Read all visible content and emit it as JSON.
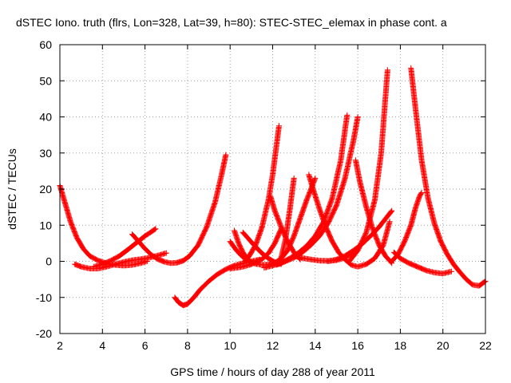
{
  "chart_data": {
    "type": "scatter",
    "title": "dSTEC Iono. truth (flrs, Lon=328, Lat=39, h=80): STEC-STEC_elemax in phase cont. a",
    "xlabel": "GPS time / hours of day 288 of year 2011",
    "ylabel": "dSTEC  / TECUs",
    "xlim": [
      2,
      22
    ],
    "ylim": [
      -20,
      60
    ],
    "xticks": [
      2,
      4,
      6,
      8,
      10,
      12,
      14,
      16,
      18,
      20,
      22
    ],
    "yticks": [
      -20,
      -10,
      0,
      10,
      20,
      30,
      40,
      50,
      60
    ],
    "grid": true,
    "marker": "plus",
    "color": "#ff0000",
    "series": [
      {
        "x": [
          2.0,
          2.2,
          2.5,
          2.8,
          3.1,
          3.4,
          3.8,
          4.2,
          4.6,
          5.0,
          5.4,
          5.8,
          6.1
        ],
        "y": [
          21,
          17,
          11,
          6.5,
          3.5,
          1.5,
          0.2,
          -0.6,
          -1.0,
          -1.2,
          -1.0,
          -0.5,
          0
        ]
      },
      {
        "x": [
          2.7,
          3.0,
          3.4,
          3.8,
          4.2,
          4.6,
          5.0,
          5.4,
          5.8,
          6.2,
          6.6,
          7.0
        ],
        "y": [
          -0.8,
          -1.5,
          -2.0,
          -2.0,
          -1.5,
          -0.8,
          -0.2,
          0.3,
          0.6,
          1.0,
          1.6,
          2.3
        ]
      },
      {
        "x": [
          3.6,
          4.0,
          4.4,
          4.8,
          5.1,
          5.4,
          5.7,
          6.0,
          6.3,
          6.5
        ],
        "y": [
          -1.5,
          -0.8,
          0.2,
          1.5,
          2.8,
          4.2,
          5.6,
          7.0,
          8.2,
          9.0
        ]
      },
      {
        "x": [
          5.4,
          5.7,
          6.0,
          6.3,
          6.6,
          6.9,
          7.2,
          7.5,
          7.8,
          8.1,
          8.5,
          8.9,
          9.3,
          9.6,
          9.8
        ],
        "y": [
          7.5,
          5.5,
          3.5,
          1.8,
          0.6,
          -0.1,
          -0.5,
          -0.4,
          0.2,
          1.5,
          4.5,
          9.5,
          16.5,
          24.0,
          29.5
        ]
      },
      {
        "x": [
          7.4,
          7.6,
          7.8,
          8.0,
          8.3,
          8.6,
          9.0,
          9.4,
          9.8,
          10.2,
          10.6,
          11.0,
          11.4
        ],
        "y": [
          -10,
          -11.5,
          -12.2,
          -11.8,
          -10.0,
          -7.8,
          -5.5,
          -3.6,
          -2.2,
          -1.2,
          -0.5,
          0.0,
          0.5
        ]
      },
      {
        "x": [
          10.0,
          10.3,
          10.6,
          10.9,
          11.2,
          11.5,
          11.8,
          12.1,
          12.4
        ],
        "y": [
          -2.0,
          -1.8,
          -1.5,
          -1.0,
          -0.3,
          0.6,
          2.2,
          5.0,
          9.0
        ]
      },
      {
        "x": [
          10.0,
          10.3,
          10.6,
          10.9,
          11.2,
          11.5,
          11.8,
          12.1
        ],
        "y": [
          5.5,
          3.0,
          1.2,
          0.0,
          -0.7,
          -1.0,
          -0.9,
          -0.5
        ]
      },
      {
        "x": [
          10.2,
          10.4,
          10.6,
          10.8,
          11.0
        ],
        "y": [
          8.5,
          5.0,
          2.5,
          0.8,
          -0.5
        ]
      },
      {
        "x": [
          10.7,
          10.9,
          11.2,
          11.5,
          11.8,
          12.0,
          12.3
        ],
        "y": [
          0.0,
          1.5,
          4.5,
          9.5,
          17.0,
          24.0,
          37.5
        ]
      },
      {
        "x": [
          10.6,
          10.9,
          11.2,
          11.5,
          11.8,
          12.1,
          12.4
        ],
        "y": [
          8.0,
          6.0,
          4.0,
          2.2,
          0.8,
          -0.2,
          -0.8
        ]
      },
      {
        "x": [
          11.9,
          12.1,
          12.4,
          12.7,
          13.0,
          13.3
        ],
        "y": [
          18.0,
          14.0,
          9.5,
          5.5,
          2.5,
          0.5
        ]
      },
      {
        "x": [
          11.8,
          12.1,
          12.4,
          12.7,
          13.0,
          13.3,
          13.6,
          14.0
        ],
        "y": [
          -1.0,
          -0.5,
          0.8,
          3.0,
          7.0,
          12.0,
          17.0,
          23.0
        ]
      },
      {
        "x": [
          12.4,
          12.6,
          12.8,
          13.0
        ],
        "y": [
          1.0,
          6.0,
          14.0,
          23.0
        ]
      },
      {
        "x": [
          11.6,
          12.0,
          12.4,
          12.8,
          13.2,
          13.6,
          14.0,
          14.4,
          14.8,
          15.2,
          15.5
        ],
        "y": [
          -1.8,
          -1.2,
          -0.4,
          0.8,
          2.3,
          4.3,
          7.0,
          11.0,
          17.5,
          28.0,
          40.5
        ]
      },
      {
        "x": [
          12.2,
          12.6,
          13.0,
          13.4,
          13.8,
          14.2,
          14.6,
          15.0,
          15.4,
          15.8,
          16.0
        ],
        "y": [
          -1.0,
          0.0,
          1.0,
          2.5,
          4.5,
          7.0,
          10.5,
          15.5,
          23.0,
          33.5,
          40.0
        ]
      },
      {
        "x": [
          13.7,
          13.9,
          14.2,
          14.5,
          14.8,
          15.1,
          15.4,
          15.7,
          16.0,
          16.4,
          16.8,
          17.2,
          17.5
        ],
        "y": [
          24.0,
          20.0,
          14.5,
          9.5,
          5.5,
          2.5,
          0.5,
          -1.0,
          -1.5,
          -0.8,
          0.8,
          4.5,
          11.0
        ]
      },
      {
        "x": [
          13.0,
          13.4,
          13.8,
          14.2,
          14.6,
          15.0,
          15.4,
          15.8,
          16.2
        ],
        "y": [
          1.5,
          0.9,
          0.5,
          0.2,
          0.1,
          0.3,
          1.0,
          2.5,
          5.0
        ]
      },
      {
        "x": [
          14.6,
          15.0,
          15.4,
          15.8,
          16.2,
          16.6,
          17.0,
          17.4,
          17.6
        ],
        "y": [
          0.0,
          0.5,
          1.5,
          3.0,
          4.8,
          7.0,
          9.5,
          12.5,
          14.0
        ]
      },
      {
        "x": [
          15.6,
          16.0,
          16.4,
          16.8,
          17.1,
          17.4
        ],
        "y": [
          0.0,
          3.0,
          8.0,
          17.0,
          30.0,
          53.0
        ]
      },
      {
        "x": [
          15.9,
          16.1,
          16.4,
          16.7,
          17.0,
          17.3,
          17.6
        ],
        "y": [
          28.0,
          22.0,
          15.0,
          9.0,
          4.5,
          1.5,
          -0.5
        ]
      },
      {
        "x": [
          17.6,
          17.9,
          18.2,
          18.5,
          18.7,
          18.9,
          19.0
        ],
        "y": [
          0.0,
          2.0,
          5.5,
          10.0,
          14.5,
          18.0,
          19.0
        ]
      },
      {
        "x": [
          17.7,
          18.0,
          18.4,
          18.8,
          19.2,
          19.6,
          20.0,
          20.4
        ],
        "y": [
          2.5,
          0.8,
          -0.5,
          -1.5,
          -2.5,
          -3.1,
          -3.4,
          -2.8
        ]
      },
      {
        "x": [
          18.5,
          18.7,
          19.0,
          19.3,
          19.6,
          19.9,
          20.2,
          20.5,
          20.8,
          21.1,
          21.4,
          21.7,
          22.0
        ],
        "y": [
          53.5,
          43.0,
          28.0,
          17.5,
          10.5,
          5.5,
          2.0,
          -0.8,
          -3.0,
          -5.0,
          -6.5,
          -6.8,
          -5.5
        ]
      }
    ]
  }
}
